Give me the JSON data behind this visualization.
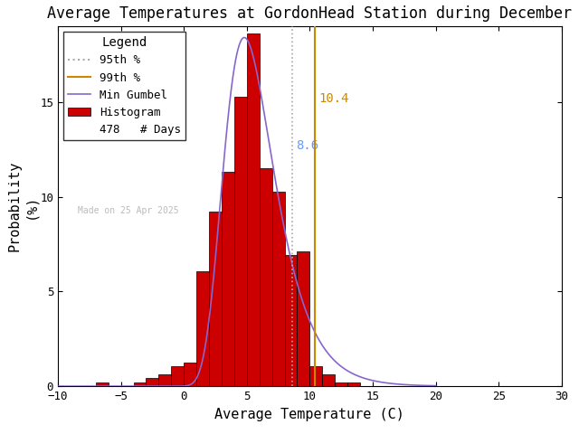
{
  "title": "Average Temperatures at GordonHead Station during December",
  "xlabel": "Average Temperature (C)",
  "ylabel": "Probability\n(%)",
  "xlim": [
    -10,
    30
  ],
  "ylim": [
    0,
    19
  ],
  "yticks": [
    0,
    5,
    10,
    15
  ],
  "xticks": [
    -10,
    -5,
    0,
    5,
    10,
    15,
    20,
    25,
    30
  ],
  "bin_lefts": [
    -9,
    -8,
    -7,
    -6,
    -5,
    -4,
    -3,
    -2,
    -1,
    0,
    1,
    2,
    3,
    4,
    5,
    6,
    7,
    8,
    9,
    10,
    11,
    12,
    13,
    14
  ],
  "bin_heights": [
    0.0,
    0.0,
    0.21,
    0.0,
    0.0,
    0.21,
    0.42,
    0.63,
    1.05,
    1.26,
    6.07,
    9.2,
    11.3,
    15.27,
    18.62,
    11.51,
    10.25,
    6.91,
    7.11,
    1.05,
    0.63,
    0.21,
    0.21,
    0.0
  ],
  "bar_color": "#cc0000",
  "bar_edgecolor": "#000000",
  "percentile_95": 8.6,
  "percentile_99": 10.4,
  "percentile_95_color": "#aaaaaa",
  "percentile_95_label_color": "#6699ff",
  "percentile_99_color": "#cc8800",
  "gumbel_color": "#8866cc",
  "gumbel_mu": 4.8,
  "gumbel_beta": 2.0,
  "n_days": 478,
  "made_on": "Made on 25 Apr 2025",
  "title_fontsize": 12,
  "axis_fontsize": 11,
  "legend_fontsize": 9,
  "tick_fontsize": 9,
  "background_color": "#ffffff"
}
